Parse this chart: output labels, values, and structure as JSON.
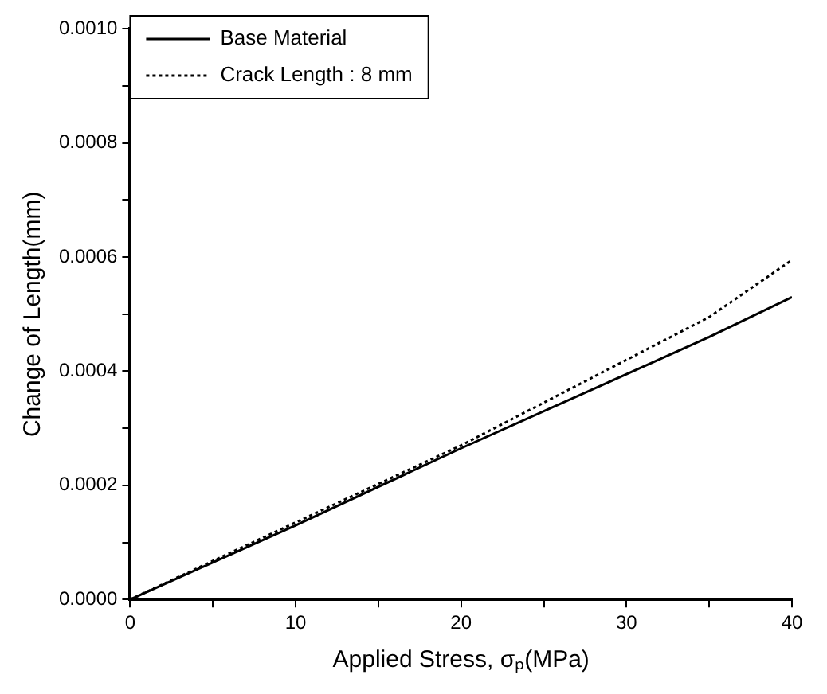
{
  "chart_data": {
    "type": "line",
    "xlabel": "Applied Stress, σₚ(MPa)",
    "ylabel": "Change of Length(mm)",
    "x": [
      0,
      10,
      20,
      30,
      35,
      40
    ],
    "series": [
      {
        "name": "Base Material",
        "color": "#000000",
        "line_style": "solid",
        "values": [
          0,
          0.00013,
          0.000265,
          0.000395,
          0.00046,
          0.00053
        ]
      },
      {
        "name": "Crack Length : 8 mm",
        "color": "#000000",
        "line_style": "dotted",
        "values": [
          0,
          0.000135,
          0.00027,
          0.00042,
          0.000495,
          0.000595
        ]
      }
    ],
    "xlim": [
      0,
      40
    ],
    "xticks": [
      0,
      {
        "value": 5,
        "label": null
      },
      10,
      {
        "value": 15,
        "label": null
      },
      20,
      {
        "value": 25,
        "label": null
      },
      30,
      {
        "value": 35,
        "label": null
      },
      40
    ],
    "ylim": [
      0,
      0.001
    ],
    "yticks": [
      {
        "value": 0,
        "label": "0.0000"
      },
      {
        "value": 0.0001,
        "label": null
      },
      {
        "value": 0.0002,
        "label": "0.0002"
      },
      {
        "value": 0.0003,
        "label": null
      },
      {
        "value": 0.0004,
        "label": "0.0004"
      },
      {
        "value": 0.0005,
        "label": null
      },
      {
        "value": 0.0006,
        "label": "0.0006"
      },
      {
        "value": 0.0007,
        "label": null
      },
      {
        "value": 0.0008,
        "label": "0.0008"
      },
      {
        "value": 0.0009,
        "label": null
      },
      {
        "value": 0.001,
        "label": "0.0010"
      }
    ],
    "grid": false,
    "legend": "top left",
    "marker": "none"
  }
}
